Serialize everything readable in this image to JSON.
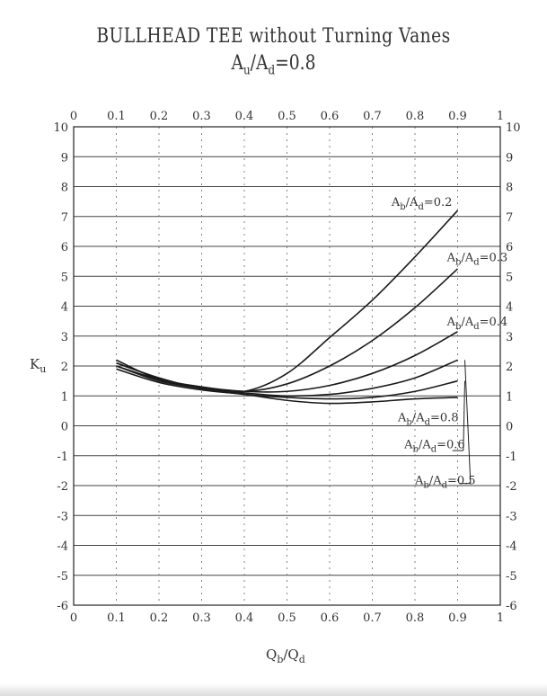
{
  "chart_data": {
    "type": "line",
    "title_line1": "BULLHEAD TEE without Turning Vanes",
    "title_line2": {
      "A": "A",
      "sub1": "u",
      "slash": "/",
      "sub2": "d",
      "tail": "=0.8"
    },
    "xlabel": {
      "main1": "Q",
      "sub1": "b",
      "slash": "/",
      "main2": "Q",
      "sub2": "d"
    },
    "ylabel": {
      "main": "K",
      "sub": "u"
    },
    "xlim": [
      0,
      1
    ],
    "ylim": [
      -6,
      10
    ],
    "x_ticks": [
      "0",
      "0.1",
      "0.2",
      "0.3",
      "0.4",
      "0.5",
      "0.6",
      "0.7",
      "0.8",
      "0.9",
      "1"
    ],
    "y_ticks": [
      "-6",
      "-5",
      "-4",
      "-3",
      "-2",
      "-1",
      "0",
      "1",
      "2",
      "3",
      "4",
      "5",
      "6",
      "7",
      "8",
      "9",
      "10"
    ],
    "grid": true,
    "series": [
      {
        "name": "Ab/Ad=0.2",
        "label_parts": {
          "A": "A",
          "s1": "b",
          "slash": "/",
          "s2": "d",
          "tail": "=0.2"
        },
        "x": [
          0.1,
          0.2,
          0.3,
          0.4,
          0.5,
          0.6,
          0.7,
          0.8,
          0.9
        ],
        "y": [
          2.1,
          1.6,
          1.25,
          1.15,
          1.75,
          2.95,
          4.2,
          5.65,
          7.2
        ]
      },
      {
        "name": "Ab/Ad=0.3",
        "label_parts": {
          "A": "A",
          "s1": "b",
          "slash": "/",
          "s2": "d",
          "tail": "=0.3"
        },
        "x": [
          0.1,
          0.2,
          0.3,
          0.4,
          0.5,
          0.6,
          0.7,
          0.8,
          0.9
        ],
        "y": [
          2.2,
          1.55,
          1.3,
          1.15,
          1.4,
          2.0,
          2.85,
          3.95,
          5.25
        ]
      },
      {
        "name": "Ab/Ad=0.4",
        "label_parts": {
          "A": "A",
          "s1": "b",
          "slash": "/",
          "s2": "d",
          "tail": "=0.4"
        },
        "x": [
          0.1,
          0.2,
          0.3,
          0.4,
          0.5,
          0.6,
          0.7,
          0.8,
          0.9
        ],
        "y": [
          2.0,
          1.55,
          1.3,
          1.15,
          1.15,
          1.35,
          1.75,
          2.35,
          3.15
        ]
      },
      {
        "name": "Ab/Ad=0.5",
        "label_parts": {
          "A": "A",
          "s1": "b",
          "slash": "/",
          "s2": "d",
          "tail": "=0.5"
        },
        "x": [
          0.1,
          0.2,
          0.3,
          0.4,
          0.5,
          0.6,
          0.7,
          0.8,
          0.9
        ],
        "y": [
          2.1,
          1.6,
          1.25,
          1.1,
          1.0,
          1.05,
          1.25,
          1.6,
          2.2
        ]
      },
      {
        "name": "Ab/Ad=0.6",
        "label_parts": {
          "A": "A",
          "s1": "b",
          "slash": "/",
          "s2": "d",
          "tail": "=0.6"
        },
        "x": [
          0.1,
          0.2,
          0.3,
          0.4,
          0.5,
          0.6,
          0.7,
          0.8,
          0.9
        ],
        "y": [
          2.0,
          1.5,
          1.25,
          1.05,
          0.95,
          0.9,
          0.95,
          1.15,
          1.5
        ]
      },
      {
        "name": "Ab/Ad=0.8",
        "label_parts": {
          "A": "A",
          "s1": "b",
          "slash": "/",
          "s2": "d",
          "tail": "=0.8"
        },
        "x": [
          0.1,
          0.2,
          0.3,
          0.4,
          0.5,
          0.6,
          0.7,
          0.8,
          0.9
        ],
        "y": [
          1.9,
          1.45,
          1.2,
          1.05,
          0.85,
          0.75,
          0.8,
          0.9,
          0.95
        ]
      }
    ]
  }
}
